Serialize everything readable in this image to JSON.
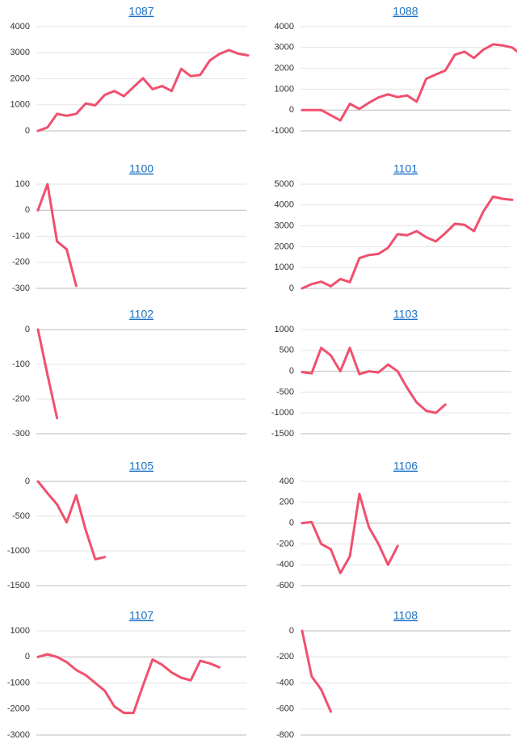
{
  "chart_data": [
    {
      "type": "line",
      "title": "1087",
      "color": "#f0506e",
      "grid": true,
      "ylim": [
        0,
        4000
      ],
      "yticks": [
        0,
        1000,
        2000,
        3000,
        4000
      ],
      "values": [
        0,
        130,
        650,
        580,
        650,
        1050,
        980,
        1380,
        1530,
        1330,
        1680,
        2020,
        1600,
        1720,
        1530,
        2380,
        2100,
        2150,
        2700,
        2950,
        3100,
        2960,
        2900
      ]
    },
    {
      "type": "line",
      "title": "1088",
      "color": "#f0506e",
      "grid": true,
      "ylim": [
        -1000,
        4000
      ],
      "yticks": [
        -1000,
        0,
        1000,
        2000,
        3000,
        4000
      ],
      "values": [
        0,
        0,
        0,
        -250,
        -500,
        300,
        50,
        350,
        600,
        750,
        620,
        700,
        400,
        1500,
        1700,
        1900,
        2650,
        2800,
        2500,
        2900,
        3150,
        3100,
        3000,
        2650
      ]
    },
    {
      "type": "line",
      "title": "1100",
      "color": "#f0506e",
      "grid": true,
      "ylim": [
        -300,
        100
      ],
      "yticks": [
        -300,
        -200,
        -100,
        0,
        100
      ],
      "values": [
        0,
        100,
        -120,
        -150,
        -290
      ]
    },
    {
      "type": "line",
      "title": "1101",
      "color": "#f0506e",
      "grid": true,
      "ylim": [
        0,
        5000
      ],
      "yticks": [
        0,
        1000,
        2000,
        3000,
        4000,
        5000
      ],
      "values": [
        0,
        200,
        320,
        100,
        450,
        300,
        1450,
        1600,
        1650,
        1950,
        2600,
        2550,
        2750,
        2450,
        2250,
        2650,
        3100,
        3050,
        2750,
        3700,
        4400,
        4300,
        4250
      ]
    },
    {
      "type": "line",
      "title": "1102",
      "color": "#f0506e",
      "grid": true,
      "ylim": [
        -300,
        0
      ],
      "yticks": [
        -300,
        -200,
        -100,
        0
      ],
      "values": [
        0,
        -130,
        -255
      ]
    },
    {
      "type": "line",
      "title": "1103",
      "color": "#f0506e",
      "grid": true,
      "ylim": [
        -1500,
        1000
      ],
      "yticks": [
        -1500,
        -1000,
        -500,
        0,
        500,
        1000
      ],
      "values": [
        -20,
        -50,
        560,
        380,
        0,
        560,
        -70,
        0,
        -30,
        160,
        0,
        -400,
        -750,
        -950,
        -1000,
        -800
      ]
    },
    {
      "type": "line",
      "title": "1105",
      "color": "#f0506e",
      "grid": true,
      "ylim": [
        -1500,
        0
      ],
      "yticks": [
        -1500,
        -1000,
        -500,
        0
      ],
      "values": [
        0,
        -170,
        -330,
        -590,
        -200,
        -700,
        -1120,
        -1090
      ]
    },
    {
      "type": "line",
      "title": "1106",
      "color": "#f0506e",
      "grid": true,
      "ylim": [
        -600,
        400
      ],
      "yticks": [
        -600,
        -400,
        -200,
        0,
        200,
        400
      ],
      "values": [
        0,
        10,
        -200,
        -250,
        -480,
        -320,
        280,
        -40,
        -200,
        -400,
        -220
      ]
    },
    {
      "type": "line",
      "title": "1107",
      "color": "#f0506e",
      "grid": true,
      "ylim": [
        -3000,
        1000
      ],
      "yticks": [
        -3000,
        -2000,
        -1000,
        0,
        1000
      ],
      "values": [
        0,
        100,
        0,
        -200,
        -500,
        -700,
        -1000,
        -1300,
        -1900,
        -2150,
        -2150,
        -1100,
        -100,
        -300,
        -600,
        -800,
        -900,
        -150,
        -250,
        -400
      ]
    },
    {
      "type": "line",
      "title": "1108",
      "color": "#f0506e",
      "grid": true,
      "ylim": [
        -800,
        0
      ],
      "yticks": [
        -800,
        -600,
        -400,
        -200,
        0
      ],
      "values": [
        0,
        -350,
        -450,
        -620
      ]
    }
  ]
}
